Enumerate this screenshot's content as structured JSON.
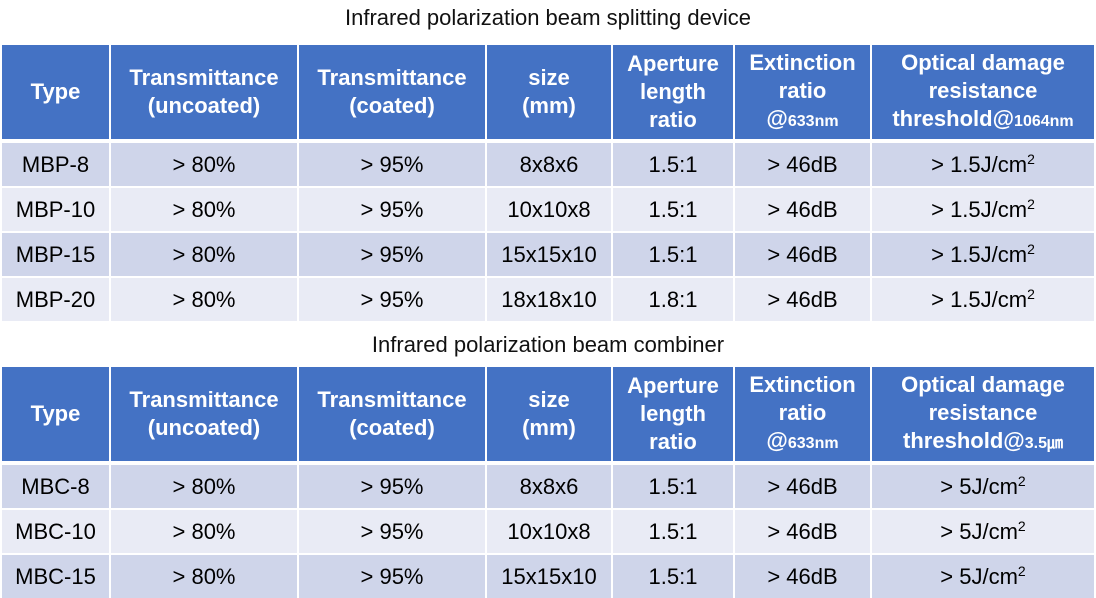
{
  "tables": [
    {
      "title": "Infrared polarization beam splitting device",
      "headers": {
        "type": "Type",
        "trans_uncoated_1": "Transmittance",
        "trans_uncoated_2": "(uncoated)",
        "trans_coated_1": "Transmittance",
        "trans_coated_2": "(coated)",
        "size_1": "size",
        "size_2": "(mm)",
        "aperture_1": "Aperture",
        "aperture_2": "length",
        "aperture_3": "ratio",
        "extinction_1": "Extinction",
        "extinction_2": "ratio",
        "extinction_3": "@",
        "extinction_4": "633nm",
        "damage_1": "Optical damage",
        "damage_2": "resistance",
        "damage_3": "threshold@",
        "damage_4": "1064nm"
      },
      "rows": [
        {
          "type": "MBP-8",
          "uncoated": "> 80%",
          "coated": "> 95%",
          "size": "8x8x6",
          "ratio": "1.5:1",
          "extinction": "> 46dB",
          "threshold": "> 1.5J/cm",
          "threshold_sup": "2"
        },
        {
          "type": "MBP-10",
          "uncoated": "> 80%",
          "coated": "> 95%",
          "size": "10x10x8",
          "ratio": "1.5:1",
          "extinction": "> 46dB",
          "threshold": "> 1.5J/cm",
          "threshold_sup": "2"
        },
        {
          "type": "MBP-15",
          "uncoated": "> 80%",
          "coated": "> 95%",
          "size": "15x15x10",
          "ratio": "1.5:1",
          "extinction": "> 46dB",
          "threshold": "> 1.5J/cm",
          "threshold_sup": "2"
        },
        {
          "type": "MBP-20",
          "uncoated": "> 80%",
          "coated": "> 95%",
          "size": "18x18x10",
          "ratio": "1.8:1",
          "extinction": "> 46dB",
          "threshold": "> 1.5J/cm",
          "threshold_sup": "2"
        }
      ]
    },
    {
      "title": "Infrared polarization beam combiner",
      "headers": {
        "type": "Type",
        "trans_uncoated_1": "Transmittance",
        "trans_uncoated_2": "(uncoated)",
        "trans_coated_1": "Transmittance",
        "trans_coated_2": "(coated)",
        "size_1": "size",
        "size_2": "(mm)",
        "aperture_1": "Aperture",
        "aperture_2": "length",
        "aperture_3": "ratio",
        "extinction_1": "Extinction",
        "extinction_2": "ratio",
        "extinction_3": "@",
        "extinction_4": "633nm",
        "damage_1": "Optical damage",
        "damage_2": "resistance",
        "damage_3": "threshold@",
        "damage_4": "3.5㎛"
      },
      "rows": [
        {
          "type": "MBC-8",
          "uncoated": "> 80%",
          "coated": "> 95%",
          "size": "8x8x6",
          "ratio": "1.5:1",
          "extinction": "> 46dB",
          "threshold": "> 5J/cm",
          "threshold_sup": "2"
        },
        {
          "type": "MBC-10",
          "uncoated": "> 80%",
          "coated": "> 95%",
          "size": "10x10x8",
          "ratio": "1.5:1",
          "extinction": "> 46dB",
          "threshold": "> 5J/cm",
          "threshold_sup": "2"
        },
        {
          "type": "MBC-15",
          "uncoated": "> 80%",
          "coated": "> 95%",
          "size": "15x15x10",
          "ratio": "1.5:1",
          "extinction": "> 46dB",
          "threshold": "> 5J/cm",
          "threshold_sup": "2"
        }
      ]
    }
  ],
  "colors": {
    "header_bg": "#4472c4",
    "row_odd_bg": "#cfd5ea",
    "row_even_bg": "#e9ebf5"
  }
}
